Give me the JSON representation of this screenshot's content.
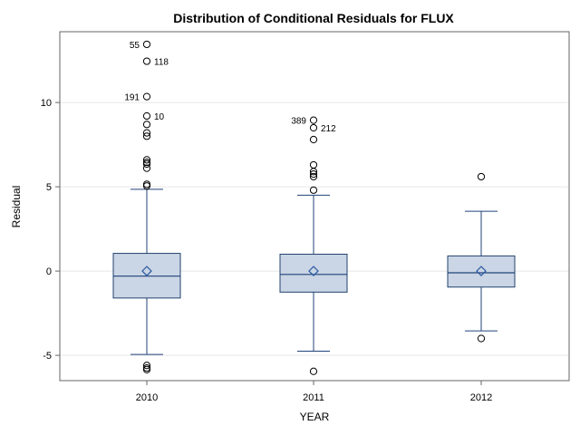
{
  "chart_data": {
    "type": "box",
    "title": "Distribution of Conditional Residuals for FLUX",
    "xlabel": "YEAR",
    "ylabel": "Residual",
    "ylim": [
      -6.5,
      14.2
    ],
    "yticks": [
      -5,
      0,
      5,
      10
    ],
    "grid": "horizontal",
    "colors": {
      "box_fill": "#cad5e5",
      "box_stroke": "#21436e",
      "whisker": "#21437a",
      "mean_marker": "#2c5aa0",
      "grid": "#e6e6e6",
      "frame": "#666666"
    },
    "categories": [
      "2010",
      "2011",
      "2012"
    ],
    "boxes": [
      {
        "category": "2010",
        "whisker_low": -4.95,
        "q1": -1.6,
        "median": -0.3,
        "q3": 1.05,
        "whisker_high": 4.85,
        "mean": 0.0,
        "outliers": [
          {
            "value": 13.45,
            "label": "55"
          },
          {
            "value": 12.45,
            "label": "118"
          },
          {
            "value": 10.35,
            "label": "191"
          },
          {
            "value": 9.2,
            "label": "10"
          },
          {
            "value": 8.7,
            "label": ""
          },
          {
            "value": 8.2,
            "label": ""
          },
          {
            "value": 8.0,
            "label": ""
          },
          {
            "value": 6.6,
            "label": ""
          },
          {
            "value": 6.45,
            "label": ""
          },
          {
            "value": 6.35,
            "label": ""
          },
          {
            "value": 6.1,
            "label": ""
          },
          {
            "value": 5.15,
            "label": ""
          },
          {
            "value": 5.05,
            "label": ""
          },
          {
            "value": -5.6,
            "label": ""
          },
          {
            "value": -5.75,
            "label": ""
          },
          {
            "value": -5.85,
            "label": ""
          }
        ]
      },
      {
        "category": "2011",
        "whisker_low": -4.75,
        "q1": -1.25,
        "median": -0.2,
        "q3": 1.0,
        "whisker_high": 4.5,
        "mean": 0.0,
        "outliers": [
          {
            "value": 8.95,
            "label": "389"
          },
          {
            "value": 8.5,
            "label": "212"
          },
          {
            "value": 7.8,
            "label": ""
          },
          {
            "value": 6.3,
            "label": ""
          },
          {
            "value": 5.9,
            "label": ""
          },
          {
            "value": 5.75,
            "label": ""
          },
          {
            "value": 5.6,
            "label": ""
          },
          {
            "value": 4.8,
            "label": ""
          },
          {
            "value": -5.95,
            "label": ""
          }
        ]
      },
      {
        "category": "2012",
        "whisker_low": -3.55,
        "q1": -0.95,
        "median": -0.1,
        "q3": 0.9,
        "whisker_high": 3.55,
        "mean": 0.0,
        "outliers": [
          {
            "value": 5.6,
            "label": ""
          },
          {
            "value": -4.0,
            "label": ""
          }
        ]
      }
    ]
  }
}
